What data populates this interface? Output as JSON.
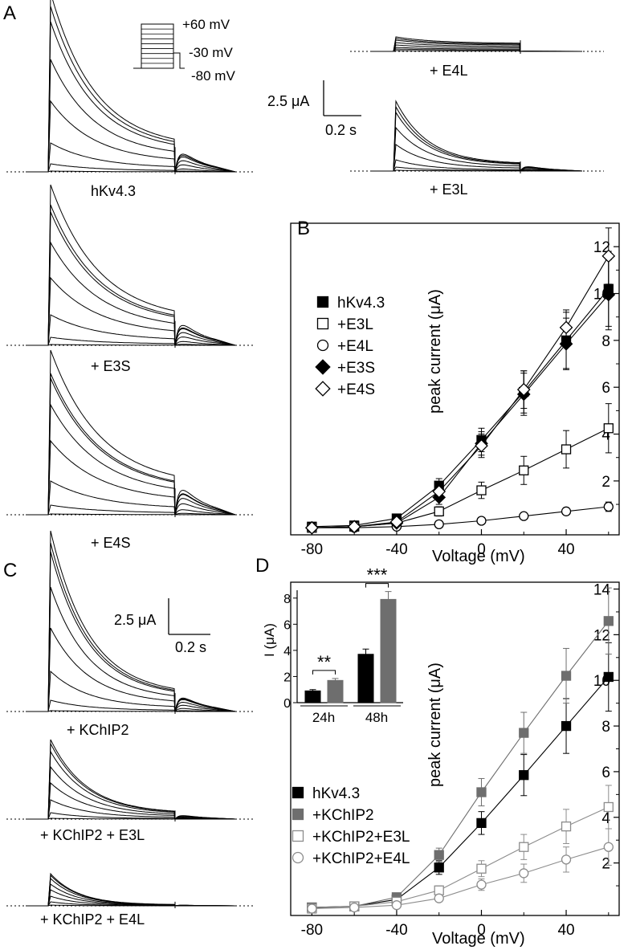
{
  "panels": {
    "A": {
      "letter": "A",
      "protocol": {
        "top": "+60 mV",
        "hold": "-30 mV",
        "bottom": "-80 mV"
      },
      "scale": {
        "current": "2.5 μA",
        "time": "0.2 s"
      },
      "trace_labels": {
        "main": "hKv4.3",
        "e4l": "+ E4L",
        "e3l": "+ E3L",
        "e3s": "+ E3S",
        "e4s": "+ E4S"
      }
    },
    "B": {
      "letter": "B"
    },
    "C": {
      "letter": "C",
      "scale": {
        "current": "2.5 μA",
        "time": "0.2 s"
      },
      "trace_labels": {
        "k2": "+ KChIP2",
        "k2e3l": "+ KChIP2 + E3L",
        "k2e4l": "+ KChIP2 + E4L"
      }
    },
    "D": {
      "letter": "D"
    }
  },
  "colors": {
    "black": "#000000",
    "gray": "#6e6e6e",
    "light_gray": "#8c8c8c",
    "white": "#ffffff"
  },
  "chart_data": [
    {
      "id": "B",
      "type": "line",
      "xlabel": "Voltage (mV)",
      "ylabel": "peak current (μA)",
      "xlim": [
        -90,
        65
      ],
      "ylim": [
        -0.3,
        13
      ],
      "xticks": [
        -80,
        -40,
        0,
        40
      ],
      "yticks": [
        2,
        4,
        6,
        8,
        10,
        12
      ],
      "x": [
        -80,
        -60,
        -40,
        -20,
        0,
        20,
        40,
        60
      ],
      "series": [
        {
          "name": "hKv4.3",
          "marker": "square",
          "fill": "#000000",
          "stroke": "#000000",
          "values": [
            0.05,
            0.1,
            0.4,
            1.8,
            3.75,
            5.8,
            8.0,
            10.2
          ],
          "errors": [
            0.05,
            0.1,
            0.15,
            0.3,
            0.5,
            0.9,
            1.2,
            1.6
          ]
        },
        {
          "name": "+E3L",
          "marker": "square",
          "fill": "#ffffff",
          "stroke": "#000000",
          "values": [
            0.0,
            0.05,
            0.2,
            0.7,
            1.6,
            2.45,
            3.35,
            4.25
          ],
          "errors": [
            0.05,
            0.05,
            0.1,
            0.2,
            0.35,
            0.6,
            0.8,
            1.05
          ]
        },
        {
          "name": "+E4L",
          "marker": "circle",
          "fill": "#ffffff",
          "stroke": "#000000",
          "values": [
            0.0,
            0.0,
            0.05,
            0.15,
            0.3,
            0.5,
            0.7,
            0.9
          ],
          "errors": [
            0.03,
            0.03,
            0.05,
            0.08,
            0.1,
            0.12,
            0.15,
            0.2
          ]
        },
        {
          "name": "+E3S",
          "marker": "diamond",
          "fill": "#000000",
          "stroke": "#000000",
          "values": [
            0.0,
            0.05,
            0.2,
            1.3,
            3.6,
            5.7,
            7.85,
            9.95
          ],
          "errors": [
            0.05,
            0.05,
            0.1,
            0.3,
            0.5,
            0.9,
            1.1,
            1.5
          ]
        },
        {
          "name": "+E4S",
          "marker": "diamond",
          "fill": "#ffffff",
          "stroke": "#000000",
          "values": [
            0.0,
            0.05,
            0.25,
            1.55,
            3.5,
            5.9,
            8.55,
            11.6
          ],
          "errors": [
            0.05,
            0.05,
            0.1,
            0.3,
            0.5,
            0.8,
            0.75,
            1.2
          ]
        }
      ]
    },
    {
      "id": "D",
      "type": "line",
      "xlabel": "Voltage (mV)",
      "ylabel": "peak current (μA)",
      "xlim": [
        -90,
        65
      ],
      "ylim": [
        -0.3,
        14.3
      ],
      "xticks": [
        -80,
        -40,
        0,
        40
      ],
      "yticks": [
        2,
        4,
        6,
        8,
        10,
        12,
        14
      ],
      "x": [
        -80,
        -60,
        -40,
        -20,
        0,
        20,
        40,
        60
      ],
      "series": [
        {
          "name": "hKv4.3",
          "marker": "square",
          "fill": "#000000",
          "stroke": "#000000",
          "values": [
            0.05,
            0.1,
            0.4,
            1.8,
            3.75,
            5.85,
            8.0,
            10.15
          ],
          "errors": [
            0.05,
            0.1,
            0.15,
            0.3,
            0.5,
            0.9,
            1.2,
            1.5
          ]
        },
        {
          "name": "+KChIP2",
          "marker": "square",
          "fill": "#6e6e6e",
          "stroke": "#6e6e6e",
          "values": [
            0.05,
            0.1,
            0.5,
            2.35,
            5.1,
            7.7,
            10.2,
            12.6
          ],
          "errors": [
            0.05,
            0.1,
            0.15,
            0.3,
            0.6,
            0.9,
            1.2,
            1.45
          ]
        },
        {
          "name": "+KChIP2+E3L",
          "marker": "square",
          "fill": "#ffffff",
          "stroke": "#8c8c8c",
          "values": [
            0.0,
            0.1,
            0.3,
            0.8,
            1.75,
            2.7,
            3.6,
            4.45
          ],
          "errors": [
            0.05,
            0.05,
            0.1,
            0.2,
            0.35,
            0.55,
            0.75,
            0.95
          ]
        },
        {
          "name": "+KChIP2+E4L",
          "marker": "circle",
          "fill": "#ffffff",
          "stroke": "#8c8c8c",
          "values": [
            0.0,
            0.05,
            0.15,
            0.45,
            1.05,
            1.55,
            2.15,
            2.7
          ],
          "errors": [
            0.03,
            0.05,
            0.1,
            0.15,
            0.25,
            0.4,
            0.55,
            0.8
          ]
        }
      ]
    },
    {
      "id": "D-inset",
      "type": "bar",
      "ylabel": "I (μA)",
      "ylim": [
        0,
        8.6
      ],
      "yticks": [
        0,
        2,
        4,
        6,
        8
      ],
      "categories": [
        "24h",
        "48h"
      ],
      "series": [
        {
          "name": "",
          "color": "#000000",
          "values": [
            0.9,
            3.7
          ],
          "errors": [
            0.1,
            0.4
          ]
        },
        {
          "name": "",
          "color": "#6e6e6e",
          "values": [
            1.7,
            7.9
          ],
          "errors": [
            0.15,
            0.6
          ]
        }
      ],
      "significance": [
        "**",
        "***"
      ]
    }
  ]
}
